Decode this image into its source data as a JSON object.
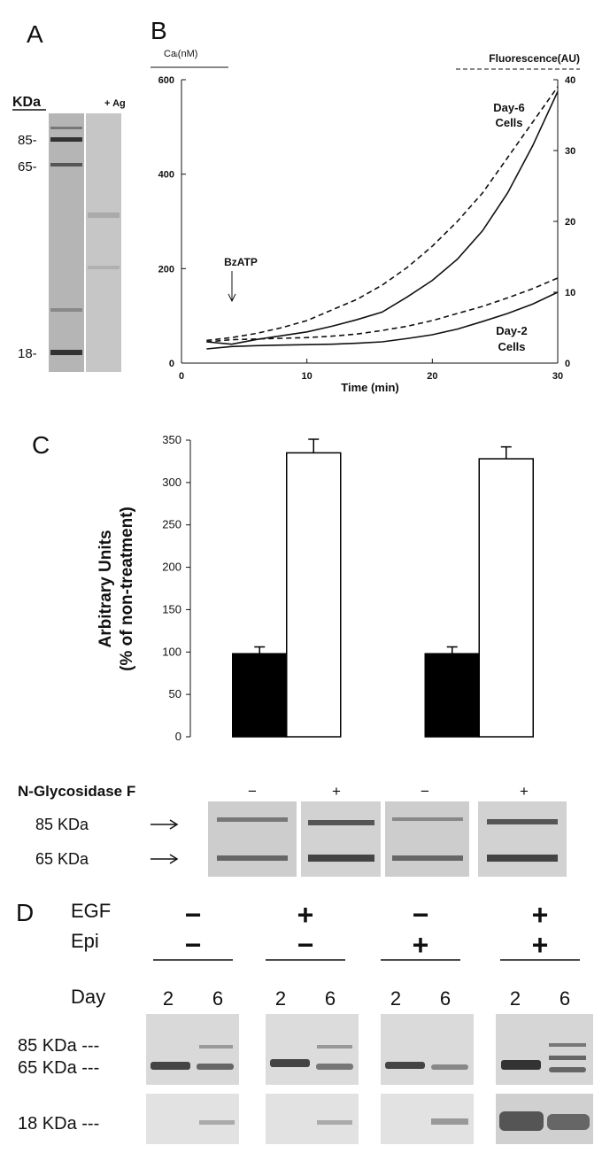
{
  "panel_a": {
    "letter": "A",
    "unit": "KDa",
    "markers": [
      "85-",
      "65-",
      "18-"
    ],
    "lane_label": "+ Ag"
  },
  "chart_data": [
    {
      "type": "line",
      "panel": "B",
      "ylabel": "Caᵢ(nM)",
      "y2label": "Fluorescence(AU)",
      "xlabel": "Time (min)",
      "x": [
        2,
        4,
        6,
        8,
        10,
        12,
        14,
        16,
        18,
        20,
        22,
        24,
        26,
        28,
        30
      ],
      "series": [
        {
          "color": "#111111",
          "style": "solid",
          "axis": "y",
          "values": [
            45,
            40,
            50,
            58,
            66,
            78,
            92,
            108,
            140,
            175,
            220,
            280,
            360,
            460,
            575
          ]
        },
        {
          "color": "#111111",
          "style": "dashed",
          "axis": "y2",
          "values": [
            3.2,
            3.6,
            4.2,
            5,
            6,
            7.5,
            9,
            11,
            13.5,
            16.5,
            20,
            24,
            29,
            34,
            39
          ]
        },
        {
          "color": "#111111",
          "style": "solid",
          "axis": "y",
          "values": [
            30,
            35,
            37,
            38,
            39,
            40,
            42,
            45,
            52,
            60,
            72,
            88,
            105,
            125,
            150
          ]
        },
        {
          "color": "#111111",
          "style": "dashed",
          "axis": "y2",
          "values": [
            3,
            3.3,
            3.4,
            3.5,
            3.6,
            3.8,
            4.1,
            4.6,
            5.2,
            6,
            7,
            8,
            9.2,
            10.5,
            12
          ]
        }
      ],
      "annotations": [
        "BzATP",
        "Day-6",
        "Cells",
        "Day-2",
        "Cells"
      ],
      "xlim": [
        0,
        30
      ],
      "xticks": [
        0,
        10,
        20,
        30
      ],
      "ylim": [
        0,
        600
      ],
      "yticks": [
        0,
        200,
        400,
        600
      ],
      "y2lim": [
        0,
        40
      ],
      "y2ticks": [
        0,
        10,
        20,
        30,
        40
      ]
    },
    {
      "type": "bar",
      "panel": "C",
      "ylabel": [
        "Arbitrary Units",
        "(% of non-treatment)"
      ],
      "categories": [
        null,
        null
      ],
      "series": [
        {
          "color": "#000000",
          "values": [
            98,
            98
          ],
          "errors": [
            8,
            8
          ]
        },
        {
          "color": "#ffffff",
          "values": [
            335,
            328
          ],
          "errors": [
            16,
            14
          ]
        }
      ],
      "ylim": [
        0,
        350
      ],
      "yticks": [
        0,
        50,
        100,
        150,
        200,
        250,
        300,
        350
      ]
    }
  ],
  "panel_c_blot": {
    "treatment": "N-Glycosidase F",
    "signs": [
      "−",
      "+",
      "−",
      "+"
    ],
    "bands": [
      "85 KDa",
      "65 KDa"
    ]
  },
  "panel_d": {
    "letter": "D",
    "rows": [
      {
        "label": "EGF",
        "signs": [
          "−",
          "+",
          "−",
          "+"
        ]
      },
      {
        "label": "Epi",
        "signs": [
          "−",
          "−",
          "+",
          "+"
        ]
      }
    ],
    "day_label": "Day",
    "days": [
      "2",
      "6",
      "2",
      "6",
      "2",
      "6",
      "2",
      "6"
    ],
    "bands": [
      "85 KDa ---",
      "65 KDa ---",
      "18 KDa ---"
    ]
  }
}
